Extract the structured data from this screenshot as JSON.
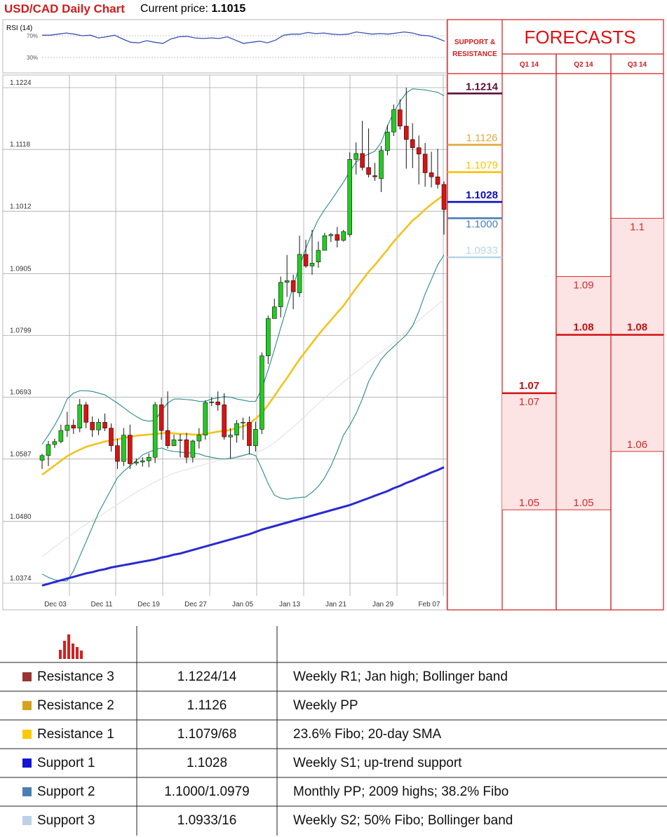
{
  "header": {
    "title": "USD/CAD Daily Chart",
    "price_label": "Current price:",
    "price_value": "1.1015"
  },
  "rsi": {
    "label": "RSI (14)",
    "levels": [
      "70%",
      "30%"
    ],
    "values": [
      71,
      71,
      73,
      75,
      73,
      70,
      71,
      66,
      68,
      71,
      64,
      58,
      57,
      61,
      58,
      56,
      64,
      68,
      69,
      66,
      65,
      66,
      65,
      68,
      62,
      56,
      58,
      60,
      57,
      62,
      71,
      73,
      73,
      76,
      74,
      75,
      73,
      72,
      73,
      77,
      75,
      73,
      74,
      73,
      75,
      77,
      75,
      71,
      70,
      66,
      60
    ]
  },
  "chart_data": {
    "type": "candlestick",
    "title": "USD/CAD Daily Chart",
    "ylim": [
      1.0374,
      1.1224
    ],
    "y_ticks": [
      "1.1224",
      "1.1118",
      "1.1012",
      "1.0905",
      "1.0799",
      "1.0693",
      "1.0587",
      "1.0480",
      "1.0374"
    ],
    "x_ticks": [
      "Dec 03",
      "Dec 11",
      "Dec 19",
      "Dec 27",
      "Jan 05",
      "Jan 13",
      "Jan 21",
      "Jan 29",
      "Feb 07"
    ],
    "candles": [
      [
        1.0585,
        1.0593,
        1.057,
        1.0596
      ],
      [
        1.0593,
        1.0612,
        1.0575,
        1.0618
      ],
      [
        1.0612,
        1.0617,
        1.0606,
        1.0622
      ],
      [
        1.0617,
        1.0636,
        1.0614,
        1.0646
      ],
      [
        1.0636,
        1.0645,
        1.0625,
        1.0668
      ],
      [
        1.0645,
        1.064,
        1.063,
        1.0655
      ],
      [
        1.064,
        1.068,
        1.0633,
        1.069
      ],
      [
        1.068,
        1.065,
        1.064,
        1.0685
      ],
      [
        1.065,
        1.0637,
        1.0625,
        1.066
      ],
      [
        1.0637,
        1.065,
        1.0628,
        1.0656
      ],
      [
        1.065,
        1.064,
        1.0635,
        1.0665
      ],
      [
        1.064,
        1.061,
        1.06,
        1.0648
      ],
      [
        1.061,
        1.0583,
        1.057,
        1.0622
      ],
      [
        1.0583,
        1.0628,
        1.0575,
        1.064
      ],
      [
        1.0628,
        1.0579,
        1.057,
        1.0646
      ],
      [
        1.058,
        1.0582,
        1.0576,
        1.0588
      ],
      [
        1.0582,
        1.0584,
        1.0574,
        1.059
      ],
      [
        1.0584,
        1.059,
        1.0573,
        1.0597
      ],
      [
        1.059,
        1.068,
        1.058,
        1.0685
      ],
      [
        1.068,
        1.0636,
        1.062,
        1.0692
      ],
      [
        1.0636,
        1.061,
        1.0605,
        1.0703
      ],
      [
        1.061,
        1.062,
        1.0609,
        1.0629
      ],
      [
        1.062,
        1.062,
        1.059,
        1.063
      ],
      [
        1.062,
        1.059,
        1.058,
        1.0632
      ],
      [
        1.059,
        1.0618,
        1.0581,
        1.062
      ],
      [
        1.0618,
        1.0628,
        1.0605,
        1.064
      ],
      [
        1.0628,
        1.0684,
        1.062,
        1.0688
      ],
      [
        1.0684,
        1.0685,
        1.0678,
        1.0693
      ],
      [
        1.0685,
        1.068,
        1.067,
        1.0703
      ],
      [
        1.068,
        1.0625,
        1.062,
        1.07
      ],
      [
        1.0625,
        1.0628,
        1.0588,
        1.064
      ],
      [
        1.0628,
        1.0648,
        1.0615,
        1.0654
      ],
      [
        1.065,
        1.065,
        1.062,
        1.0658
      ],
      [
        1.065,
        1.061,
        1.0595,
        1.066
      ],
      [
        1.061,
        1.0638,
        1.06,
        1.0651
      ],
      [
        1.0638,
        1.0764,
        1.063,
        1.077
      ],
      [
        1.0764,
        1.0828,
        1.075,
        1.0833
      ],
      [
        1.0828,
        1.0848,
        1.083,
        1.0862
      ],
      [
        1.0848,
        1.089,
        1.083,
        1.09
      ],
      [
        1.089,
        1.0893,
        1.0865,
        1.0937
      ],
      [
        1.0893,
        1.0874,
        1.0844,
        1.0903
      ],
      [
        1.0872,
        1.0938,
        1.0865,
        1.097
      ],
      [
        1.0938,
        1.0918,
        1.0915,
        1.0963
      ],
      [
        1.0918,
        1.0923,
        1.0903,
        1.098
      ],
      [
        1.0925,
        1.0945,
        1.0915,
        1.096
      ],
      [
        1.0945,
        1.097,
        1.095,
        1.0975
      ],
      [
        1.097,
        1.0972,
        1.0959,
        1.0975
      ],
      [
        1.0972,
        1.0962,
        1.095,
        1.0985
      ],
      [
        1.0962,
        1.0977,
        1.096,
        1.098
      ],
      [
        1.0972,
        1.1101,
        1.0968,
        1.1113
      ],
      [
        1.1101,
        1.1111,
        1.1075,
        1.113
      ],
      [
        1.1111,
        1.1087,
        1.1082,
        1.1167
      ],
      [
        1.1087,
        1.1075,
        1.107,
        1.1154
      ],
      [
        1.1073,
        1.1071,
        1.1064,
        1.1095
      ],
      [
        1.1068,
        1.1116,
        1.1045,
        1.1124
      ],
      [
        1.1116,
        1.1148,
        1.1108,
        1.116
      ],
      [
        1.1148,
        1.1186,
        1.1141,
        1.1195
      ],
      [
        1.1186,
        1.1158,
        1.1152,
        1.1204
      ],
      [
        1.1158,
        1.1135,
        1.1085,
        1.1224
      ],
      [
        1.1135,
        1.1121,
        1.1086,
        1.1163
      ],
      [
        1.1121,
        1.111,
        1.1058,
        1.1142
      ],
      [
        1.111,
        1.1078,
        1.1054,
        1.1129
      ],
      [
        1.1078,
        1.1071,
        1.1053,
        1.1114
      ],
      [
        1.1071,
        1.1058,
        1.1051,
        1.1119
      ],
      [
        1.1058,
        1.1015,
        1.0972,
        1.1063
      ]
    ],
    "sma_slow": [
      1.037,
      1.0373,
      1.0376,
      1.0379,
      1.0382,
      1.0385,
      1.0388,
      1.0391,
      1.0393,
      1.0396,
      1.0398,
      1.0401,
      1.0403,
      1.0405,
      1.0407,
      1.0409,
      1.0411,
      1.0413,
      1.0415,
      1.0418,
      1.042,
      1.0423,
      1.0425,
      1.0428,
      1.0431,
      1.0434,
      1.0437,
      1.044,
      1.0443,
      1.0446,
      1.0449,
      1.0452,
      1.0455,
      1.0458,
      1.0462,
      1.0466,
      1.0469,
      1.0472,
      1.0475,
      1.0478,
      1.0481,
      1.0484,
      1.0487,
      1.049,
      1.0493,
      1.0496,
      1.0499,
      1.0502,
      1.0505,
      1.0508,
      1.0512,
      1.0516,
      1.052,
      1.0524,
      1.0528,
      1.0532,
      1.0537,
      1.0541,
      1.0546,
      1.055,
      1.0555,
      1.0559,
      1.0564,
      1.0568,
      1.0573
    ],
    "sma_mid": [
      1.042,
      1.0428,
      1.0436,
      1.0444,
      1.0452,
      1.046,
      1.0468,
      1.0475,
      1.0482,
      1.0488,
      1.0495,
      1.0502,
      1.0509,
      1.0516,
      1.0523,
      1.053,
      1.0536,
      1.0542,
      1.0548,
      1.0553,
      1.0558,
      1.0563,
      1.0566,
      1.0569,
      1.0572,
      1.0575,
      1.0578,
      1.0581,
      1.0584,
      1.0587,
      1.059,
      1.0592,
      1.0594,
      1.0596,
      1.0598,
      1.0602,
      1.0608,
      1.0615,
      1.0624,
      1.0633,
      1.0642,
      1.0652,
      1.0662,
      1.0672,
      1.0682,
      1.0692,
      1.0701,
      1.071,
      1.0719,
      1.0728,
      1.0736,
      1.0745,
      1.0754,
      1.0762,
      1.077,
      1.0778,
      1.0787,
      1.0796,
      1.0806,
      1.0816,
      1.0825,
      1.0834,
      1.0843,
      1.0852,
      1.086
    ],
    "sma_20": [
      1.056,
      1.0568,
      1.0576,
      1.0584,
      1.0592,
      1.0598,
      1.0603,
      1.0608,
      1.0611,
      1.0614,
      1.0617,
      1.0619,
      1.0621,
      1.0623,
      1.0625,
      1.0627,
      1.0628,
      1.0629,
      1.063,
      1.0631,
      1.0632,
      1.0631,
      1.063,
      1.063,
      1.0629,
      1.0629,
      1.063,
      1.0632,
      1.0634,
      1.0635,
      1.0637,
      1.064,
      1.0643,
      1.0648,
      1.0656,
      1.0666,
      1.068,
      1.0695,
      1.0711,
      1.0726,
      1.0742,
      1.0758,
      1.0772,
      1.0786,
      1.08,
      1.0813,
      1.0825,
      1.0838,
      1.085,
      1.0865,
      1.088,
      1.0894,
      1.0908,
      1.092,
      1.0933,
      1.0946,
      1.096,
      1.0972,
      1.0984,
      1.0996,
      1.1005,
      1.1015,
      1.1024,
      1.1032,
      1.104
    ],
    "bb_upper": [
      1.0612,
      1.0628,
      1.0645,
      1.0665,
      1.069,
      1.07,
      1.0704,
      1.0704,
      1.0703,
      1.07,
      1.0697,
      1.069,
      1.0683,
      1.0675,
      1.0667,
      1.066,
      1.0654,
      1.0652,
      1.0653,
      1.067,
      1.0683,
      1.069,
      1.069,
      1.0689,
      1.0688,
      1.0686,
      1.0686,
      1.069,
      1.0692,
      1.0694,
      1.0693,
      1.069,
      1.0688,
      1.0686,
      1.0686,
      1.0708,
      1.074,
      1.0775,
      1.0812,
      1.0848,
      1.0883,
      1.0918,
      1.0948,
      1.0975,
      1.0998,
      1.1015,
      1.103,
      1.1046,
      1.1062,
      1.108,
      1.1096,
      1.1105,
      1.111,
      1.1115,
      1.113,
      1.1158,
      1.1182,
      1.12,
      1.1215,
      1.1222,
      1.1221,
      1.122,
      1.1218,
      1.1216,
      1.121
    ],
    "bb_lower": [
      1.039,
      1.0384,
      1.038,
      1.0378,
      1.0378,
      1.0395,
      1.042,
      1.0445,
      1.047,
      1.0495,
      1.0515,
      1.0535,
      1.0555,
      1.0566,
      1.0575,
      1.0584,
      1.0594,
      1.0599,
      1.0603,
      1.0606,
      1.0602,
      1.06,
      1.0599,
      1.0598,
      1.0597,
      1.0596,
      1.0592,
      1.059,
      1.0588,
      1.0587,
      1.0588,
      1.059,
      1.0593,
      1.0596,
      1.0593,
      1.057,
      1.0545,
      1.0525,
      1.052,
      1.0518,
      1.052,
      1.0521,
      1.0522,
      1.053,
      1.054,
      1.0555,
      1.0575,
      1.06,
      1.0628,
      1.0645,
      1.0665,
      1.069,
      1.072,
      1.074,
      1.0758,
      1.077,
      1.078,
      1.079,
      1.08,
      1.0815,
      1.084,
      1.087,
      1.0895,
      1.092,
      1.0937
    ]
  },
  "levels": {
    "header": [
      "SUPPORT &",
      "RESISTANCE"
    ],
    "items": [
      {
        "label": "1.1214",
        "value": 1.1214,
        "color": "#5a1038"
      },
      {
        "label": "1.1126",
        "value": 1.1126,
        "color": "#e0a83c"
      },
      {
        "label": "1.1079",
        "value": 1.1079,
        "color": "#ffc200"
      },
      {
        "label": "1.1028",
        "value": 1.1028,
        "color": "#0a0ac8"
      },
      {
        "label": "1.1000",
        "value": 1.1,
        "color": "#4a7fb4"
      },
      {
        "label": "1.0933",
        "value": 1.0933,
        "color": "#b9d6e6"
      }
    ]
  },
  "forecasts": {
    "title": "FORECASTS",
    "quarters": [
      {
        "label": "Q1 14",
        "max": 1.07,
        "min": 1.05,
        "median": 1.07,
        "max_label": "1.07",
        "min_label": "1.05",
        "median_label": "1.07"
      },
      {
        "label": "Q2 14",
        "max": 1.09,
        "min": 1.05,
        "median": 1.08,
        "max_label": "1.09",
        "min_label": "1.05",
        "median_label": "1.08"
      },
      {
        "label": "Q3 14",
        "max": 1.1,
        "min": 1.06,
        "median": 1.08,
        "max_label": "1.1",
        "min_label": "1.06",
        "median_label": "1.08"
      }
    ]
  },
  "table": {
    "rows": [
      {
        "name": "Resistance 3",
        "color": "#9b3333",
        "level": "1.1224/14",
        "comment": "Weekly R1; Jan high; Bollinger band"
      },
      {
        "name": "Resistance 2",
        "color": "#d6a31c",
        "level": "1.1126",
        "comment": "Weekly PP"
      },
      {
        "name": "Resistance 1",
        "color": "#ffc800",
        "level": "1.1079/68",
        "comment": "23.6% Fibo; 20-day SMA"
      },
      {
        "name": "Support 1",
        "color": "#1414d2",
        "level": "1.1028",
        "comment": "Weekly S1; up-trend support"
      },
      {
        "name": "Support 2",
        "color": "#4a7fb4",
        "level": "1.1000/1.0979",
        "comment": "Monthly PP; 2009 highs; 38.2% Fibo"
      },
      {
        "name": "Support 3",
        "color": "#bcd0e8",
        "level": "1.0933/16",
        "comment": "Weekly S2; 50% Fibo; Bollinger band"
      }
    ]
  }
}
